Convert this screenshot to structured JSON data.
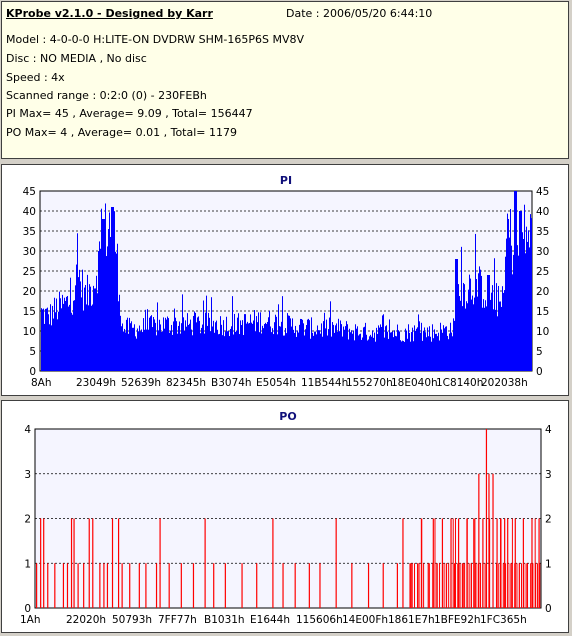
{
  "info": {
    "title": "KProbe v2.1.0 - Designed by Karr",
    "date": "Date : 2006/05/20 6:44:10",
    "lines": [
      "Model : 4-0-0-0 H:LITE-ON DVDRW SHM-165P6S MV8V",
      "Disc : NO MEDIA , No disc",
      "Speed : 4x",
      "Scanned range : 0:2:0 (0) - 230FEBh",
      "PI Max= 45 , Average= 9.09 , Total= 156447",
      "PO Max= 4 , Average= 0.01 , Total= 1179"
    ]
  },
  "colors": {
    "pi_bar": "#0000ff",
    "po_bar": "#ff0000",
    "title": "#10107a",
    "panel": "#ffffe8"
  },
  "chart_data": [
    {
      "type": "bar",
      "title": "PI",
      "ylim": [
        0,
        45
      ],
      "yticks": [
        0,
        5,
        10,
        15,
        20,
        25,
        30,
        35,
        40,
        45
      ],
      "xtick_labels": [
        "8Ah",
        "23049h",
        "52639h",
        "82345h",
        "B3074h",
        "E5054h",
        "11B544h",
        "155270h",
        "18E040h",
        "1C8140h",
        "202038h"
      ],
      "grid": true,
      "profile": [
        [
          0,
          15
        ],
        [
          1.5,
          14
        ],
        [
          3,
          16
        ],
        [
          4.5,
          17
        ],
        [
          6,
          18
        ],
        [
          7.5,
          25
        ],
        [
          9,
          19
        ],
        [
          10.5,
          22
        ],
        [
          12,
          30
        ],
        [
          13.5,
          38
        ],
        [
          15,
          35
        ],
        [
          16.5,
          11
        ],
        [
          20,
          11
        ],
        [
          25,
          12
        ],
        [
          30,
          12
        ],
        [
          35,
          12
        ],
        [
          40,
          12
        ],
        [
          45,
          13
        ],
        [
          50,
          12
        ],
        [
          55,
          11
        ],
        [
          60,
          11
        ],
        [
          65,
          10
        ],
        [
          70,
          10
        ],
        [
          75,
          10
        ],
        [
          80,
          10
        ],
        [
          84,
          11
        ],
        [
          85,
          20
        ],
        [
          87,
          22
        ],
        [
          89,
          22
        ],
        [
          91,
          20
        ],
        [
          93,
          18
        ],
        [
          94.2,
          16
        ],
        [
          94.8,
          38
        ],
        [
          96,
          32
        ],
        [
          97.5,
          33
        ],
        [
          98.7,
          36
        ],
        [
          100,
          34
        ]
      ],
      "peaks": [
        [
          14.5,
          41
        ],
        [
          12.6,
          38
        ],
        [
          96.6,
          45
        ],
        [
          97.6,
          40
        ],
        [
          84.5,
          28
        ],
        [
          91,
          24
        ]
      ]
    },
    {
      "type": "bar",
      "title": "PO",
      "ylim": [
        0,
        4
      ],
      "yticks": [
        0,
        1,
        2,
        3,
        4
      ],
      "xtick_labels": [
        "1Ah",
        "22020h",
        "50793h",
        "7FF77h",
        "B1031h",
        "E1644h",
        "115606h",
        "14E00Fh",
        "1861E7h",
        "1BFE92h",
        "1FC365h"
      ],
      "grid": true,
      "spikes": [
        [
          0.2,
          1
        ],
        [
          1,
          2
        ],
        [
          1.6,
          2
        ],
        [
          2.4,
          1
        ],
        [
          3.8,
          1
        ],
        [
          5.5,
          1
        ],
        [
          6.3,
          1
        ],
        [
          7.1,
          2
        ],
        [
          7.6,
          2
        ],
        [
          8.4,
          1
        ],
        [
          9.5,
          1
        ],
        [
          10.6,
          2
        ],
        [
          11.3,
          2
        ],
        [
          12.7,
          1
        ],
        [
          13.5,
          1
        ],
        [
          14.2,
          1
        ],
        [
          15.2,
          2
        ],
        [
          16.4,
          2
        ],
        [
          17.1,
          1
        ],
        [
          18.6,
          1
        ],
        [
          20.5,
          1
        ],
        [
          21.8,
          1
        ],
        [
          23.9,
          1
        ],
        [
          24.6,
          2
        ],
        [
          26.4,
          1
        ],
        [
          28.8,
          1
        ],
        [
          31.2,
          1
        ],
        [
          33.5,
          2
        ],
        [
          35.2,
          1
        ],
        [
          37.5,
          1
        ],
        [
          40.8,
          1
        ],
        [
          43.7,
          1
        ],
        [
          46.9,
          2
        ],
        [
          48.9,
          1
        ],
        [
          51.3,
          1
        ],
        [
          54.1,
          1
        ],
        [
          56.2,
          1
        ],
        [
          59.4,
          2
        ],
        [
          62.5,
          1
        ],
        [
          65.8,
          1
        ],
        [
          68.7,
          1
        ],
        [
          71.5,
          1
        ],
        [
          72.6,
          2
        ],
        [
          74.2,
          1
        ],
        [
          75.5,
          1
        ],
        [
          76.3,
          2
        ],
        [
          77.8,
          1
        ],
        [
          78.6,
          2
        ],
        [
          79.3,
          1
        ],
        [
          80.4,
          2
        ],
        [
          81.2,
          1
        ],
        [
          82.1,
          2
        ],
        [
          82.8,
          1
        ],
        [
          83.6,
          2
        ],
        [
          84.5,
          1
        ],
        [
          85.3,
          2
        ],
        [
          86.1,
          1
        ],
        [
          86.8,
          2
        ],
        [
          87.6,
          3
        ],
        [
          88.4,
          2
        ],
        [
          89.1,
          4
        ],
        [
          89.6,
          3
        ],
        [
          90.4,
          3
        ],
        [
          91.2,
          2
        ],
        [
          91.9,
          2
        ],
        [
          92.7,
          2
        ],
        [
          93.3,
          2
        ],
        [
          94.1,
          1
        ],
        [
          94.8,
          2
        ],
        [
          95.6,
          1
        ],
        [
          96.4,
          2
        ],
        [
          97.2,
          1
        ],
        [
          98.1,
          2
        ],
        [
          98.8,
          1
        ],
        [
          99.5,
          2
        ]
      ]
    }
  ]
}
